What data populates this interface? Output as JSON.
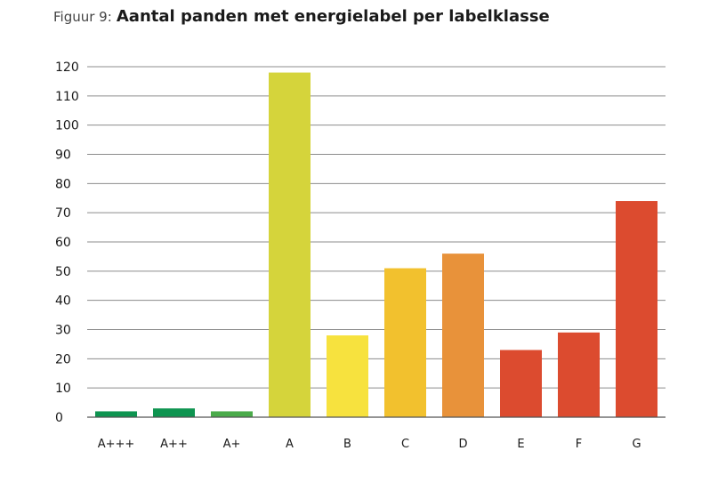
{
  "title": {
    "prefix": "Figuur 9:",
    "main": "Aantal panden met energielabel per labelklasse"
  },
  "chart_data": {
    "type": "bar",
    "categories": [
      "A+++",
      "A++",
      "A+",
      "A",
      "B",
      "C",
      "D",
      "E",
      "F",
      "G"
    ],
    "values": [
      2,
      3,
      2,
      118,
      28,
      51,
      56,
      23,
      29,
      74
    ],
    "colors": [
      "#0e9450",
      "#0e9450",
      "#4aab4a",
      "#d5d43b",
      "#f7e23e",
      "#f2c12e",
      "#e8923a",
      "#dc4b2f",
      "#dc4b2f",
      "#dc4b2f"
    ],
    "yticks": [
      0,
      10,
      20,
      30,
      40,
      50,
      60,
      70,
      80,
      90,
      100,
      110,
      120
    ],
    "ylim": [
      0,
      120
    ],
    "grid": true,
    "legend": "none",
    "xlabel": "",
    "ylabel": ""
  }
}
